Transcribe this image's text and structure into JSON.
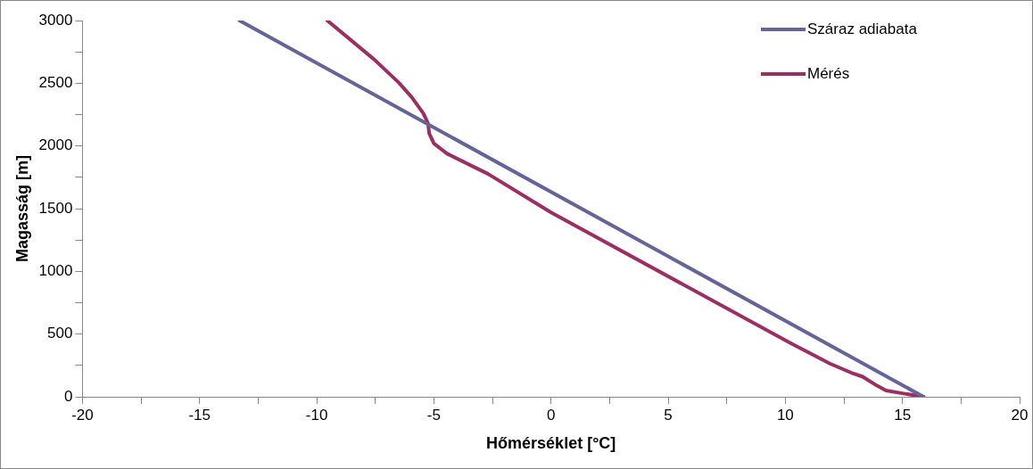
{
  "chart_data": {
    "type": "line",
    "xlabel": "Hőmérséklet [°C]",
    "ylabel": "Magasság [m]",
    "xlim": [
      -20,
      20
    ],
    "ylim": [
      0,
      3000
    ],
    "xticks": [
      -20,
      {
        "value": -17.5,
        "label": null
      },
      -15,
      {
        "value": -12.5,
        "label": null
      },
      -10,
      {
        "value": -7.5,
        "label": null
      },
      -5,
      {
        "value": -2.5,
        "label": null
      },
      0,
      {
        "value": 2.5,
        "label": null
      },
      5,
      {
        "value": 7.5,
        "label": null
      },
      10,
      {
        "value": 12.5,
        "label": null
      },
      15,
      {
        "value": 17.5,
        "label": null
      },
      20
    ],
    "yticks": [
      0,
      {
        "value": 250,
        "label": null
      },
      500,
      {
        "value": 750,
        "label": null
      },
      1000,
      {
        "value": 1250,
        "label": null
      },
      1500,
      {
        "value": 1750,
        "label": null
      },
      2000,
      {
        "value": 2250,
        "label": null
      },
      2500,
      {
        "value": 2750,
        "label": null
      },
      3000
    ],
    "grid": false,
    "legend": "top right",
    "marker": "none",
    "line_style": "solid",
    "series": [
      {
        "name": "Száraz adiabata",
        "color": "#646498",
        "x": [
          15.9,
          -13.3
        ],
        "values": [
          0,
          3000
        ]
      },
      {
        "name": "Mérés",
        "color": "#9b2f63",
        "x": [
          15.9,
          15.1,
          14.3,
          13.9,
          13.3,
          12.9,
          11.9,
          10.2,
          0,
          -2.7,
          -4.45,
          -5.0,
          -5.2,
          -5.25,
          -5.45,
          -5.95,
          -6.5,
          -7.55,
          -9.55
        ],
        "values": [
          0,
          24,
          50,
          90,
          160,
          185,
          265,
          430,
          1470,
          1778,
          1940,
          2020,
          2100,
          2180,
          2260,
          2390,
          2505,
          2690,
          3000
        ]
      }
    ]
  }
}
